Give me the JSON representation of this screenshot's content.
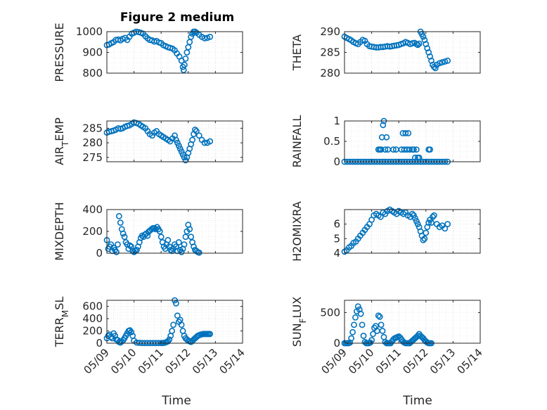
{
  "figure": {
    "title": "Figure 2 medium"
  },
  "chart_data": [
    {
      "type": "scatter",
      "title": "Figure 2 medium",
      "ylabel": "PRESSURE",
      "xlabel": "",
      "ylim": [
        800,
        1000
      ],
      "yticks": [
        800,
        900,
        1000
      ],
      "xlim": [
        "05/09",
        "05/14"
      ],
      "grid": true,
      "marker": "circle-open",
      "color": "#0072BD",
      "x": [
        0.0,
        0.08,
        0.17,
        0.25,
        0.33,
        0.42,
        0.5,
        0.58,
        0.67,
        0.75,
        0.83,
        0.92,
        1.0,
        1.08,
        1.17,
        1.25,
        1.33,
        1.42,
        1.5,
        1.58,
        1.67,
        1.75,
        1.83,
        1.92,
        2.0,
        2.08,
        2.17,
        2.25,
        2.33,
        2.42,
        2.5,
        2.58,
        2.67,
        2.75,
        2.8,
        2.83,
        2.86,
        2.9,
        2.95,
        3.0,
        3.05,
        3.1,
        3.15,
        3.2,
        3.25,
        3.3,
        3.4,
        3.5,
        3.6,
        3.7,
        3.8
      ],
      "y": [
        935,
        938,
        945,
        950,
        960,
        962,
        958,
        965,
        970,
        960,
        975,
        990,
        995,
        1000,
        998,
        995,
        990,
        978,
        968,
        960,
        958,
        952,
        955,
        948,
        945,
        935,
        930,
        925,
        922,
        918,
        910,
        895,
        880,
        860,
        830,
        815,
        840,
        870,
        900,
        925,
        950,
        975,
        990,
        1000,
        1000,
        995,
        985,
        975,
        968,
        970,
        975
      ]
    },
    {
      "type": "scatter",
      "ylabel": "THETA",
      "ylim": [
        280,
        290
      ],
      "yticks": [
        280,
        285,
        290
      ],
      "xlim": [
        "05/09",
        "05/14"
      ],
      "grid": true,
      "marker": "circle-open",
      "color": "#0072BD",
      "x": [
        0.0,
        0.08,
        0.17,
        0.25,
        0.33,
        0.42,
        0.5,
        0.58,
        0.67,
        0.75,
        0.83,
        0.92,
        1.0,
        1.08,
        1.17,
        1.25,
        1.33,
        1.42,
        1.5,
        1.58,
        1.67,
        1.75,
        1.83,
        1.92,
        2.0,
        2.08,
        2.17,
        2.25,
        2.33,
        2.42,
        2.5,
        2.58,
        2.65,
        2.7,
        2.75,
        2.8,
        2.85,
        2.9,
        2.95,
        3.0,
        3.05,
        3.1,
        3.15,
        3.2,
        3.25,
        3.3,
        3.35,
        3.4,
        3.5,
        3.6,
        3.7,
        3.8
      ],
      "y": [
        288.8,
        288.5,
        288.2,
        287.9,
        287.5,
        287.2,
        287.0,
        287.5,
        288.0,
        287.8,
        287.0,
        286.5,
        286.4,
        286.3,
        286.2,
        286.2,
        286.3,
        286.3,
        286.4,
        286.5,
        286.4,
        286.5,
        286.6,
        286.7,
        286.8,
        287.0,
        287.2,
        287.5,
        287.3,
        287.0,
        287.2,
        287.3,
        287.0,
        286.8,
        287.1,
        290.0,
        289.4,
        288.8,
        288.0,
        287.0,
        286.0,
        285.0,
        284.0,
        283.0,
        282.0,
        281.5,
        281.2,
        282.0,
        282.4,
        282.6,
        282.8,
        283.0
      ]
    },
    {
      "type": "scatter",
      "ylabel": "AIR_TEMP",
      "ylim": [
        273.5,
        287.5
      ],
      "yticks": [
        275,
        280,
        285
      ],
      "xlim": [
        "05/09",
        "05/14"
      ],
      "grid": true,
      "marker": "circle-open",
      "color": "#0072BD",
      "x": [
        0.0,
        0.08,
        0.17,
        0.25,
        0.33,
        0.42,
        0.5,
        0.58,
        0.67,
        0.75,
        0.83,
        0.92,
        1.0,
        1.08,
        1.17,
        1.25,
        1.33,
        1.42,
        1.5,
        1.58,
        1.67,
        1.75,
        1.83,
        1.92,
        2.0,
        2.08,
        2.17,
        2.25,
        2.33,
        2.42,
        2.5,
        2.55,
        2.6,
        2.65,
        2.7,
        2.75,
        2.8,
        2.85,
        2.9,
        2.95,
        3.0,
        3.05,
        3.1,
        3.15,
        3.2,
        3.25,
        3.3,
        3.4,
        3.5,
        3.6,
        3.7,
        3.8
      ],
      "y": [
        283.5,
        283.8,
        284.0,
        284.2,
        284.5,
        285.0,
        284.8,
        285.0,
        285.5,
        285.8,
        286.0,
        286.5,
        287.0,
        286.8,
        286.5,
        286.0,
        285.5,
        285.0,
        284.0,
        283.0,
        282.5,
        283.5,
        284.0,
        283.0,
        282.5,
        282.0,
        281.5,
        281.0,
        280.5,
        281.5,
        282.5,
        281.0,
        280.0,
        279.0,
        278.0,
        277.0,
        276.0,
        275.0,
        274.0,
        275.0,
        276.5,
        278.0,
        279.5,
        281.0,
        283.0,
        284.5,
        284.0,
        282.5,
        281.0,
        280.0,
        280.0,
        280.5
      ]
    },
    {
      "type": "scatter",
      "ylabel": "RAINFALL",
      "ylim": [
        0,
        1
      ],
      "yticks": [
        0,
        0.5,
        1
      ],
      "xlim": [
        "05/09",
        "05/14"
      ],
      "grid": true,
      "marker": "circle-open",
      "color": "#0072BD",
      "x": [
        0.0,
        0.1,
        0.2,
        0.3,
        0.4,
        0.5,
        0.6,
        0.7,
        0.8,
        0.9,
        1.0,
        1.1,
        1.2,
        1.3,
        1.4,
        1.5,
        1.6,
        1.7,
        1.8,
        1.9,
        2.0,
        2.1,
        2.2,
        2.3,
        2.4,
        2.5,
        2.6,
        2.7,
        2.8,
        2.9,
        3.0,
        3.1,
        3.2,
        3.3,
        3.4,
        3.5,
        3.6,
        3.7,
        3.8,
        1.25,
        1.3,
        1.35,
        1.38,
        1.42,
        1.45,
        1.5,
        1.55,
        1.6,
        1.8,
        1.9,
        2.1,
        2.15,
        2.2,
        2.25,
        2.3,
        2.35,
        2.4,
        2.5,
        2.55,
        2.6,
        2.65,
        2.7,
        2.75,
        3.1,
        3.15
      ],
      "y": [
        0,
        0,
        0,
        0,
        0,
        0,
        0,
        0,
        0,
        0,
        0,
        0,
        0,
        0,
        0,
        0,
        0,
        0,
        0,
        0,
        0,
        0,
        0,
        0,
        0,
        0,
        0,
        0,
        0,
        0,
        0,
        0,
        0,
        0,
        0,
        0,
        0,
        0,
        0,
        0.3,
        0.3,
        0.3,
        0.6,
        0.9,
        1.0,
        0.3,
        0.6,
        0.3,
        0.3,
        0.3,
        0.3,
        0.7,
        0.3,
        0.7,
        0.3,
        0.7,
        0.3,
        0.3,
        0.3,
        0.1,
        0.3,
        0.1,
        0.1,
        0.3,
        0.3
      ]
    },
    {
      "type": "scatter",
      "ylabel": "MIXDEPTH",
      "ylim": [
        0,
        400
      ],
      "yticks": [
        0,
        200,
        400
      ],
      "xlim": [
        "05/09",
        "05/14"
      ],
      "grid": true,
      "marker": "circle-open",
      "color": "#0072BD",
      "x": [
        0.0,
        0.05,
        0.1,
        0.15,
        0.2,
        0.25,
        0.3,
        0.35,
        0.4,
        0.45,
        0.5,
        0.55,
        0.6,
        0.65,
        0.7,
        0.75,
        0.8,
        0.85,
        0.9,
        0.95,
        1.0,
        1.05,
        1.1,
        1.15,
        1.2,
        1.25,
        1.3,
        1.35,
        1.4,
        1.45,
        1.5,
        1.55,
        1.6,
        1.65,
        1.7,
        1.75,
        1.8,
        1.85,
        1.9,
        1.95,
        2.0,
        2.05,
        2.1,
        2.15,
        2.2,
        2.25,
        2.3,
        2.35,
        2.4,
        2.45,
        2.5,
        2.55,
        2.6,
        2.65,
        2.7,
        2.75,
        2.8,
        2.85,
        2.9,
        2.95,
        3.0,
        3.05,
        3.1,
        3.15,
        3.2,
        3.25,
        3.3,
        3.35,
        3.4
      ],
      "y": [
        120,
        40,
        60,
        80,
        20,
        50,
        30,
        10,
        80,
        340,
        280,
        220,
        180,
        150,
        100,
        80,
        40,
        70,
        60,
        20,
        10,
        20,
        30,
        60,
        100,
        140,
        160,
        150,
        170,
        180,
        160,
        200,
        210,
        220,
        230,
        230,
        220,
        240,
        220,
        200,
        150,
        100,
        60,
        40,
        80,
        120,
        60,
        30,
        20,
        40,
        80,
        60,
        20,
        100,
        30,
        10,
        40,
        80,
        150,
        200,
        260,
        220,
        150,
        100,
        60,
        30,
        20,
        10,
        5
      ]
    },
    {
      "type": "scatter",
      "ylabel": "H2OMIXRA",
      "ylim": [
        4,
        7
      ],
      "yticks": [
        4,
        5,
        6
      ],
      "xlim": [
        "05/09",
        "05/14"
      ],
      "grid": true,
      "marker": "circle-open",
      "color": "#0072BD",
      "x": [
        0.0,
        0.08,
        0.17,
        0.25,
        0.33,
        0.42,
        0.5,
        0.58,
        0.67,
        0.75,
        0.83,
        0.92,
        1.0,
        1.08,
        1.17,
        1.25,
        1.33,
        1.42,
        1.5,
        1.58,
        1.67,
        1.75,
        1.83,
        1.92,
        2.0,
        2.08,
        2.17,
        2.25,
        2.33,
        2.42,
        2.5,
        2.55,
        2.6,
        2.65,
        2.7,
        2.75,
        2.8,
        2.85,
        2.9,
        2.95,
        3.0,
        3.05,
        3.1,
        3.15,
        3.2,
        3.25,
        3.3,
        3.4,
        3.5,
        3.6,
        3.7,
        3.8
      ],
      "y": [
        4.1,
        4.2,
        4.4,
        4.5,
        4.7,
        4.8,
        5.0,
        5.2,
        5.4,
        5.6,
        5.8,
        6.0,
        6.3,
        6.6,
        6.7,
        6.6,
        6.5,
        6.8,
        6.7,
        6.9,
        7.0,
        6.9,
        6.8,
        6.7,
        6.9,
        6.8,
        6.7,
        6.8,
        6.6,
        6.5,
        6.7,
        6.6,
        6.4,
        6.2,
        6.0,
        5.8,
        5.5,
        5.2,
        4.9,
        5.0,
        5.4,
        5.8,
        6.1,
        6.3,
        6.1,
        6.5,
        6.6,
        6.0,
        5.8,
        5.9,
        5.7,
        6.0
      ]
    },
    {
      "type": "scatter",
      "ylabel": "TERR_MSL",
      "ylim": [
        0,
        700
      ],
      "yticks": [
        0,
        200,
        400,
        600
      ],
      "xlim": [
        "05/09",
        "05/14"
      ],
      "grid": true,
      "marker": "circle-open",
      "color": "#0072BD",
      "x": [
        0.0,
        0.05,
        0.1,
        0.15,
        0.2,
        0.25,
        0.3,
        0.35,
        0.4,
        0.45,
        0.5,
        0.55,
        0.6,
        0.65,
        0.7,
        0.75,
        0.8,
        0.85,
        0.9,
        0.95,
        1.0,
        1.1,
        1.2,
        1.3,
        1.4,
        1.5,
        1.6,
        1.7,
        1.8,
        1.9,
        2.0,
        2.05,
        2.1,
        2.15,
        2.2,
        2.25,
        2.3,
        2.35,
        2.4,
        2.45,
        2.5,
        2.55,
        2.6,
        2.65,
        2.7,
        2.75,
        2.8,
        2.85,
        2.9,
        2.95,
        3.0,
        3.05,
        3.1,
        3.15,
        3.2,
        3.25,
        3.3,
        3.35,
        3.4,
        3.45,
        3.5,
        3.55,
        3.6,
        3.65,
        3.7,
        3.75,
        3.8
      ],
      "y": [
        80,
        120,
        140,
        100,
        80,
        160,
        120,
        60,
        50,
        20,
        10,
        30,
        50,
        80,
        120,
        160,
        200,
        210,
        180,
        120,
        40,
        10,
        5,
        2,
        2,
        2,
        2,
        2,
        2,
        2,
        2,
        2,
        5,
        10,
        20,
        30,
        60,
        120,
        200,
        300,
        700,
        650,
        450,
        350,
        380,
        300,
        200,
        120,
        80,
        60,
        40,
        30,
        20,
        40,
        60,
        80,
        100,
        120,
        130,
        140,
        145,
        150,
        150,
        150,
        150,
        150,
        150
      ]
    },
    {
      "type": "scatter",
      "ylabel": "SUN_FLUX",
      "ylim": [
        0,
        700
      ],
      "yticks": [
        0,
        500
      ],
      "xlim": [
        "05/09",
        "05/14"
      ],
      "grid": true,
      "marker": "circle-open",
      "color": "#0072BD",
      "x": [
        0.0,
        0.05,
        0.1,
        0.15,
        0.2,
        0.25,
        0.3,
        0.35,
        0.4,
        0.45,
        0.5,
        0.55,
        0.6,
        0.65,
        0.7,
        0.75,
        0.8,
        0.85,
        0.9,
        0.95,
        1.0,
        1.05,
        1.1,
        1.15,
        1.2,
        1.25,
        1.3,
        1.35,
        1.4,
        1.45,
        1.5,
        1.55,
        1.6,
        1.65,
        1.7,
        1.75,
        1.8,
        1.85,
        1.9,
        1.95,
        2.0,
        2.05,
        2.1,
        2.15,
        2.2,
        2.25,
        2.3,
        2.35,
        2.4,
        2.45,
        2.5,
        2.55,
        2.6,
        2.65,
        2.7,
        2.75,
        2.8,
        2.85,
        2.9,
        2.95,
        3.0,
        3.05,
        3.1,
        3.15,
        3.2
      ],
      "y": [
        0,
        0,
        0,
        0,
        10,
        80,
        180,
        300,
        420,
        520,
        600,
        550,
        480,
        300,
        120,
        20,
        0,
        0,
        0,
        10,
        50,
        150,
        250,
        280,
        200,
        450,
        430,
        300,
        200,
        100,
        20,
        0,
        0,
        0,
        0,
        30,
        60,
        80,
        90,
        100,
        110,
        90,
        60,
        30,
        10,
        0,
        0,
        0,
        0,
        20,
        40,
        60,
        80,
        100,
        120,
        150,
        120,
        100,
        80,
        50,
        30,
        10,
        0,
        0,
        0
      ]
    }
  ],
  "xaxis": {
    "label": "Time",
    "ticks": [
      "05/09",
      "05/10",
      "05/11",
      "05/12",
      "05/13",
      "05/14"
    ]
  }
}
